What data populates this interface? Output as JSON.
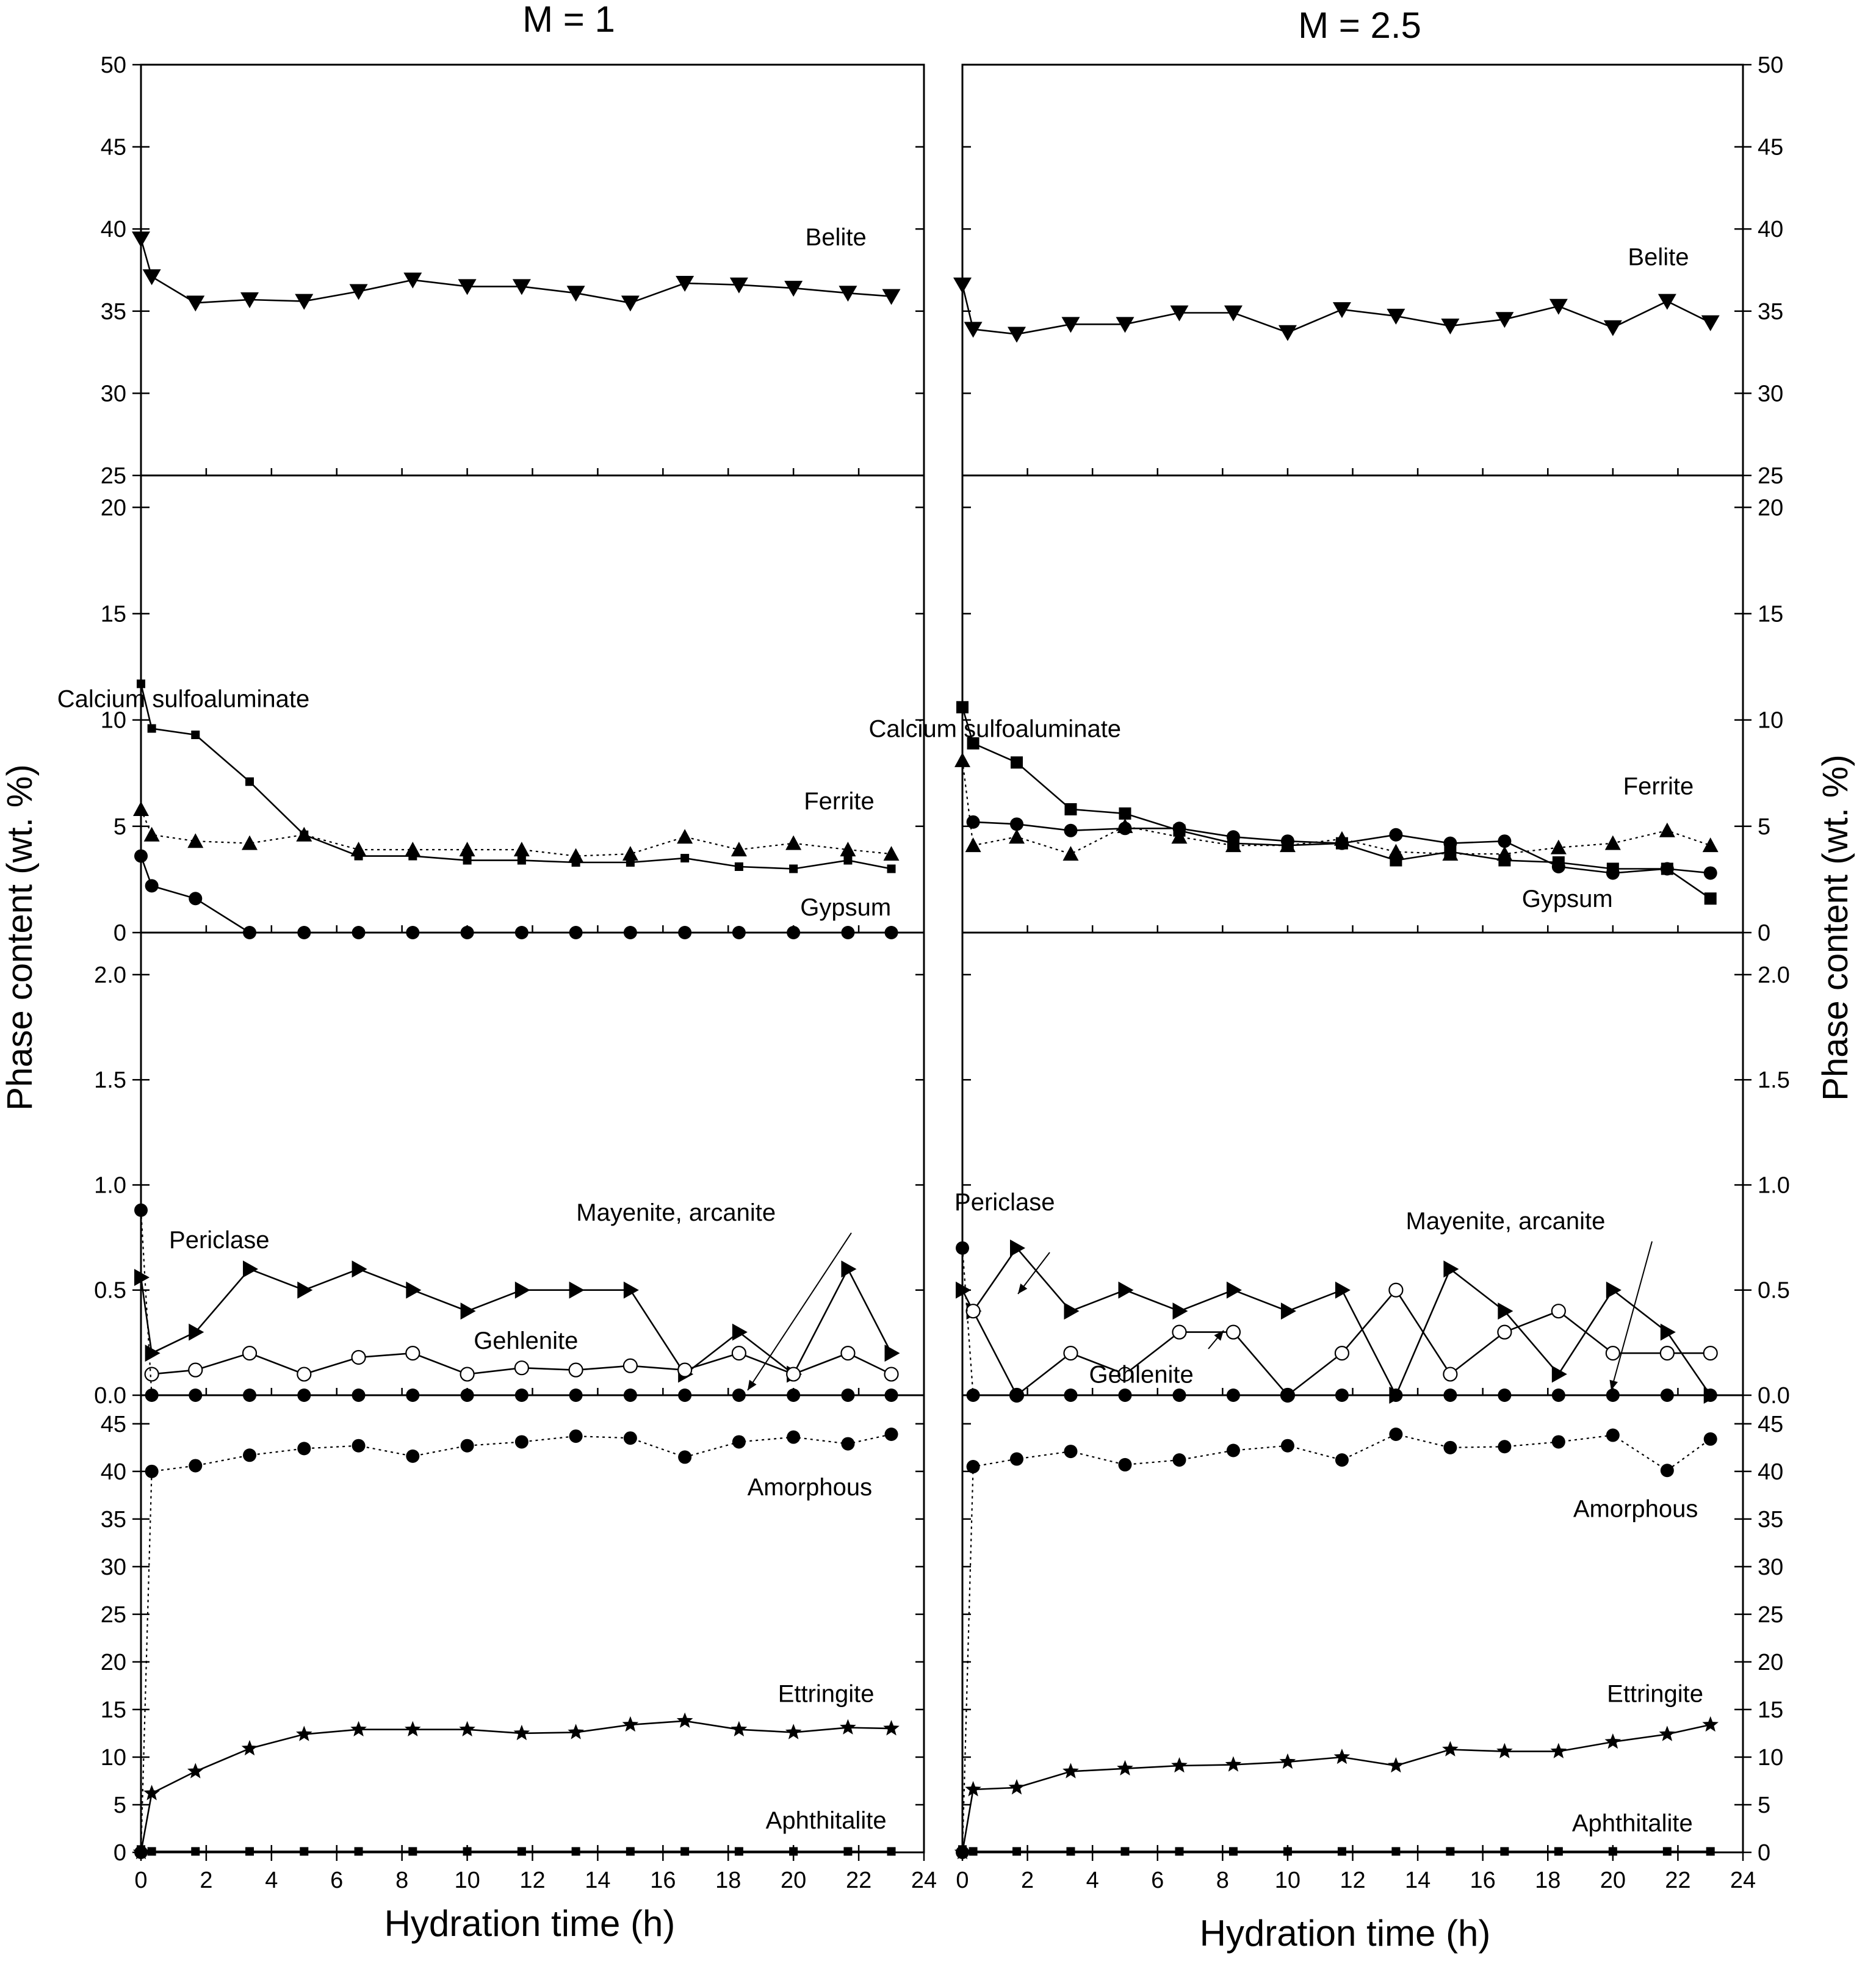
{
  "figure": {
    "left_title": "M = 1",
    "right_title": "M = 2.5",
    "xlabel": "Hydration time (h)",
    "ylabel": "Phase content (wt. %)",
    "x_ticks": [
      0,
      2,
      4,
      6,
      8,
      10,
      12,
      14,
      16,
      18,
      20,
      22,
      24
    ],
    "xlim": [
      0,
      24
    ]
  },
  "chart_data": [
    {
      "type": "line",
      "panel": "M1-belite",
      "xlabel": "Hydration time (h)",
      "ylabel": "Phase content (wt. %)",
      "ylim": [
        25,
        50
      ],
      "y_ticks": [
        25,
        30,
        35,
        40,
        45,
        50
      ],
      "series": [
        {
          "name": "Belite",
          "marker": "triangle-down",
          "line": "solid",
          "x": [
            0,
            0.33,
            1.67,
            3.33,
            5,
            6.67,
            8.33,
            10,
            11.67,
            13.33,
            15,
            16.67,
            18.33,
            20,
            21.67,
            23
          ],
          "values": [
            39.4,
            37.1,
            35.5,
            35.7,
            35.6,
            36.2,
            36.9,
            36.5,
            36.5,
            36.1,
            35.5,
            36.7,
            36.6,
            36.4,
            36.1,
            35.9
          ]
        }
      ],
      "annotations": [
        {
          "text": "Belite",
          "x": 21.3,
          "y": 39.0
        }
      ]
    },
    {
      "type": "line",
      "panel": "M1-main",
      "ylim": [
        0,
        21.5
      ],
      "y_ticks": [
        0,
        5,
        10,
        15,
        20
      ],
      "series": [
        {
          "name": "Calcium sulfoaluminate",
          "marker": "square-small",
          "line": "solid",
          "x": [
            0,
            0.33,
            1.67,
            3.33,
            5,
            6.67,
            8.33,
            10,
            11.67,
            13.33,
            15,
            16.67,
            18.33,
            20,
            21.67,
            23
          ],
          "values": [
            11.7,
            9.6,
            9.3,
            7.1,
            4.6,
            3.6,
            3.6,
            3.4,
            3.4,
            3.3,
            3.3,
            3.5,
            3.1,
            3.0,
            3.4,
            3.0
          ]
        },
        {
          "name": "Ferrite",
          "marker": "triangle-up",
          "line": "dotted",
          "x": [
            0,
            0.33,
            1.67,
            3.33,
            5,
            6.67,
            8.33,
            10,
            11.67,
            13.33,
            15,
            16.67,
            18.33,
            20,
            21.67,
            23
          ],
          "values": [
            5.8,
            4.6,
            4.3,
            4.2,
            4.6,
            3.9,
            3.9,
            3.9,
            3.9,
            3.6,
            3.7,
            4.5,
            3.9,
            4.2,
            3.9,
            3.7
          ]
        },
        {
          "name": "Gypsum",
          "marker": "circle-filled",
          "line": "solid",
          "x": [
            0,
            0.33,
            1.67,
            3.33,
            5,
            6.67,
            8.33,
            10,
            11.67,
            13.33,
            15,
            16.67,
            18.33,
            20,
            21.67,
            23
          ],
          "values": [
            3.6,
            2.2,
            1.6,
            0,
            0,
            0,
            0,
            0,
            0,
            0,
            0,
            0,
            0,
            0,
            0,
            0
          ]
        }
      ],
      "annotations": [
        {
          "text": "Calcium sulfoaluminate",
          "x": 1.3,
          "y": 10.6
        },
        {
          "text": "Ferrite",
          "x": 21.4,
          "y": 5.8
        },
        {
          "text": "Gypsum",
          "x": 21.6,
          "y": 0.8
        }
      ]
    },
    {
      "type": "line",
      "panel": "M1-minor",
      "ylim": [
        0,
        2.2
      ],
      "y_ticks": [
        0.0,
        0.5,
        1.0,
        1.5,
        2.0
      ],
      "series": [
        {
          "name": "Periclase",
          "marker": "triangle-right",
          "line": "solid",
          "x": [
            0,
            0.33,
            1.67,
            3.33,
            5,
            6.67,
            8.33,
            10,
            11.67,
            13.33,
            15,
            16.67,
            18.33,
            20,
            21.67,
            23
          ],
          "values": [
            0.56,
            0.2,
            0.3,
            0.6,
            0.5,
            0.6,
            0.5,
            0.4,
            0.5,
            0.5,
            0.5,
            0.1,
            0.3,
            0.1,
            0.6,
            0.2
          ]
        },
        {
          "name": "Gehlenite",
          "marker": "circle-open",
          "line": "solid",
          "x": [
            0.33,
            1.67,
            3.33,
            5,
            6.67,
            8.33,
            10,
            11.67,
            13.33,
            15,
            16.67,
            18.33,
            20,
            21.67,
            23
          ],
          "values": [
            0.1,
            0.12,
            0.2,
            0.1,
            0.18,
            0.2,
            0.1,
            0.13,
            0.12,
            0.14,
            0.12,
            0.2,
            0.1,
            0.2,
            0.1
          ]
        },
        {
          "name": "Mayenite, arcanite",
          "marker": "circle-filled",
          "line": "dotted",
          "x": [
            0,
            0.33,
            1.67,
            3.33,
            5,
            6.67,
            8.33,
            10,
            11.67,
            13.33,
            15,
            16.67,
            18.33,
            20,
            21.67,
            23
          ],
          "values": [
            0.88,
            0,
            0,
            0,
            0,
            0,
            0,
            0,
            0,
            0,
            0,
            0,
            0,
            0,
            0,
            0
          ]
        }
      ],
      "annotations": [
        {
          "text": "Periclase",
          "x": 2.4,
          "y": 0.7
        },
        {
          "text": "Mayenite, arcanite",
          "x": 16.4,
          "y": 0.83
        },
        {
          "text": "Gehlenite",
          "x": 11.8,
          "y": 0.22
        }
      ]
    },
    {
      "type": "line",
      "panel": "M1-bottom",
      "ylim": [
        0,
        48
      ],
      "y_ticks": [
        0,
        5,
        10,
        15,
        20,
        25,
        30,
        35,
        40,
        45
      ],
      "series": [
        {
          "name": "Amorphous",
          "marker": "circle-filled",
          "line": "dotted",
          "x": [
            0,
            0.33,
            1.67,
            3.33,
            5,
            6.67,
            8.33,
            10,
            11.67,
            13.33,
            15,
            16.67,
            18.33,
            20,
            21.67,
            23
          ],
          "values": [
            0,
            40.0,
            40.6,
            41.7,
            42.4,
            42.7,
            41.6,
            42.7,
            43.1,
            43.7,
            43.5,
            41.5,
            43.1,
            43.6,
            42.9,
            43.9
          ]
        },
        {
          "name": "Ettringite",
          "marker": "star",
          "line": "solid",
          "x": [
            0,
            0.33,
            1.67,
            3.33,
            5,
            6.67,
            8.33,
            10,
            11.67,
            13.33,
            15,
            16.67,
            18.33,
            20,
            21.67,
            23
          ],
          "values": [
            0,
            6.2,
            8.5,
            10.9,
            12.4,
            12.9,
            12.9,
            12.9,
            12.5,
            12.6,
            13.4,
            13.8,
            12.9,
            12.6,
            13.1,
            13.0
          ]
        },
        {
          "name": "Aphthitalite",
          "marker": "square-small",
          "line": "solid",
          "x": [
            0,
            0.33,
            1.67,
            3.33,
            5,
            6.67,
            8.33,
            10,
            11.67,
            13.33,
            15,
            16.67,
            18.33,
            20,
            21.67,
            23
          ],
          "values": [
            0.3,
            0.1,
            0.1,
            0.1,
            0.1,
            0.1,
            0.1,
            0.1,
            0.1,
            0.1,
            0.1,
            0.1,
            0.1,
            0.1,
            0.1,
            0.1
          ]
        }
      ],
      "annotations": [
        {
          "text": "Amorphous",
          "x": 20.5,
          "y": 37.5
        },
        {
          "text": "Ettringite",
          "x": 21.0,
          "y": 15.8
        },
        {
          "text": "Aphthitalite",
          "x": 21.0,
          "y": 2.5
        }
      ]
    },
    {
      "type": "line",
      "panel": "M25-belite",
      "ylim": [
        25,
        50
      ],
      "y_ticks": [
        25,
        30,
        35,
        40,
        45,
        50
      ],
      "series": [
        {
          "name": "Belite",
          "marker": "triangle-down",
          "line": "solid",
          "x": [
            0,
            0.33,
            1.67,
            3.33,
            5,
            6.67,
            8.33,
            10,
            11.67,
            13.33,
            15,
            16.67,
            18.33,
            20,
            21.67,
            23
          ],
          "values": [
            36.6,
            33.9,
            33.6,
            34.2,
            34.2,
            34.9,
            34.9,
            33.7,
            35.1,
            34.7,
            34.1,
            34.5,
            35.3,
            34.0,
            35.6,
            34.3
          ]
        }
      ],
      "annotations": [
        {
          "text": "Belite",
          "x": 21.4,
          "y": 37.8
        }
      ]
    },
    {
      "type": "line",
      "panel": "M25-main",
      "ylim": [
        0,
        21.5
      ],
      "y_ticks": [
        0,
        5,
        10,
        15,
        20
      ],
      "series": [
        {
          "name": "Calcium sulfoaluminate",
          "marker": "square",
          "line": "solid",
          "x": [
            0,
            0.33,
            1.67,
            3.33,
            5,
            6.67,
            8.33,
            10,
            11.67,
            13.33,
            15,
            16.67,
            18.33,
            20,
            21.67,
            23
          ],
          "values": [
            10.6,
            8.9,
            8.0,
            5.8,
            5.6,
            4.8,
            4.2,
            4.1,
            4.2,
            3.4,
            3.8,
            3.4,
            3.3,
            3.0,
            3.0,
            1.6
          ]
        },
        {
          "name": "Ferrite",
          "marker": "triangle-up",
          "line": "dotted",
          "x": [
            0,
            0.33,
            1.67,
            3.33,
            5,
            6.67,
            8.33,
            10,
            11.67,
            13.33,
            15,
            16.67,
            18.33,
            20,
            21.67,
            23
          ],
          "values": [
            8.1,
            4.1,
            4.5,
            3.7,
            5.0,
            4.5,
            4.1,
            4.1,
            4.4,
            3.8,
            3.7,
            3.7,
            4.0,
            4.2,
            4.8,
            4.1
          ]
        },
        {
          "name": "Gypsum",
          "marker": "circle-filled",
          "line": "solid",
          "x": [
            0.33,
            1.67,
            3.33,
            5,
            6.67,
            8.33,
            10,
            11.67,
            13.33,
            15,
            16.67,
            18.33,
            20,
            21.67,
            23
          ],
          "values": [
            5.2,
            5.1,
            4.8,
            4.9,
            4.9,
            4.5,
            4.3,
            4.2,
            4.6,
            4.2,
            4.3,
            3.1,
            2.8,
            3.0,
            2.8
          ]
        }
      ],
      "annotations": [
        {
          "text": "Calcium sulfoaluminate",
          "x": 1.0,
          "y": 9.2
        },
        {
          "text": "Ferrite",
          "x": 21.4,
          "y": 6.5
        },
        {
          "text": "Gypsum",
          "x": 18.6,
          "y": 1.2
        }
      ]
    },
    {
      "type": "line",
      "panel": "M25-minor",
      "ylim": [
        0,
        2.2
      ],
      "y_ticks": [
        0.0,
        0.5,
        1.0,
        1.5,
        2.0
      ],
      "series": [
        {
          "name": "Periclase",
          "marker": "triangle-right",
          "line": "solid",
          "x": [
            0,
            0.33,
            1.67,
            3.33,
            5,
            6.67,
            8.33,
            10,
            11.67,
            13.33,
            15,
            16.67,
            18.33,
            20,
            21.67,
            23
          ],
          "values": [
            0.5,
            0.4,
            0.7,
            0.4,
            0.5,
            0.4,
            0.5,
            0.4,
            0.5,
            0.0,
            0.6,
            0.4,
            0.1,
            0.5,
            0.3,
            0.0
          ]
        },
        {
          "name": "Gehlenite",
          "marker": "circle-open",
          "line": "solid",
          "x": [
            0.33,
            1.67,
            3.33,
            5,
            6.67,
            8.33,
            10,
            11.67,
            13.33,
            15,
            16.67,
            18.33,
            20,
            21.67,
            23
          ],
          "values": [
            0.4,
            0.0,
            0.2,
            0.1,
            0.3,
            0.3,
            0.0,
            0.2,
            0.5,
            0.1,
            0.3,
            0.4,
            0.2,
            0.2,
            0.2
          ]
        },
        {
          "name": "Mayenite, arcanite",
          "marker": "circle-filled",
          "line": "dotted",
          "x": [
            0,
            0.33,
            1.67,
            3.33,
            5,
            6.67,
            8.33,
            10,
            11.67,
            13.33,
            15,
            16.67,
            18.33,
            20,
            21.67,
            23
          ],
          "values": [
            0.7,
            0,
            0,
            0,
            0,
            0,
            0,
            0,
            0,
            0,
            0,
            0,
            0,
            0,
            0,
            0
          ]
        }
      ],
      "annotations": [
        {
          "text": "Periclase",
          "x": 1.3,
          "y": 0.88
        },
        {
          "text": "Mayenite, arcanite",
          "x": 16.7,
          "y": 0.79
        },
        {
          "text": "Gehlenite",
          "x": 5.5,
          "y": 0.06
        }
      ]
    },
    {
      "type": "line",
      "panel": "M25-bottom",
      "ylim": [
        0,
        48
      ],
      "y_ticks": [
        0,
        5,
        10,
        15,
        20,
        25,
        30,
        35,
        40,
        45
      ],
      "series": [
        {
          "name": "Amorphous",
          "marker": "circle-filled",
          "line": "dotted",
          "x": [
            0,
            0.33,
            1.67,
            3.33,
            5,
            6.67,
            8.33,
            10,
            11.67,
            13.33,
            15,
            16.67,
            18.33,
            20,
            21.67,
            23
          ],
          "values": [
            0,
            40.5,
            41.3,
            42.1,
            40.7,
            41.2,
            42.2,
            42.7,
            41.2,
            43.9,
            42.5,
            42.6,
            43.1,
            43.8,
            40.1,
            43.4
          ]
        },
        {
          "name": "Ettringite",
          "marker": "star",
          "line": "solid",
          "x": [
            0,
            0.33,
            1.67,
            3.33,
            5,
            6.67,
            8.33,
            10,
            11.67,
            13.33,
            15,
            16.67,
            18.33,
            20,
            21.67,
            23
          ],
          "values": [
            0,
            6.6,
            6.8,
            8.5,
            8.8,
            9.1,
            9.2,
            9.5,
            10.0,
            9.1,
            10.8,
            10.6,
            10.6,
            11.6,
            12.4,
            13.4
          ]
        },
        {
          "name": "Aphthitalite",
          "marker": "square-small",
          "line": "solid",
          "x": [
            0,
            0.33,
            1.67,
            3.33,
            5,
            6.67,
            8.33,
            10,
            11.67,
            13.33,
            15,
            16.67,
            18.33,
            20,
            21.67,
            23
          ],
          "values": [
            0.3,
            0.1,
            0.1,
            0.1,
            0.1,
            0.1,
            0.1,
            0.1,
            0.1,
            0.1,
            0.1,
            0.1,
            0.1,
            0.1,
            0.1,
            0.1
          ]
        }
      ],
      "annotations": [
        {
          "text": "Amorphous",
          "x": 20.7,
          "y": 35.2
        },
        {
          "text": "Ettringite",
          "x": 21.3,
          "y": 15.8
        },
        {
          "text": "Aphthitalite",
          "x": 20.6,
          "y": 2.2
        }
      ]
    }
  ]
}
